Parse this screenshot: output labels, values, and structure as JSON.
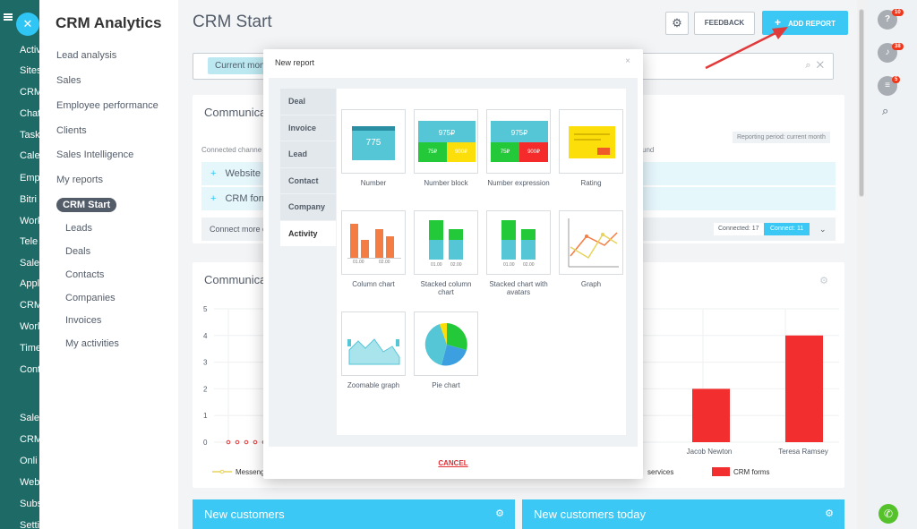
{
  "left_menu": {
    "items": [
      "Activ",
      "Sites",
      "CRM",
      "Chat",
      "Task",
      "Cale",
      "Emp",
      "Bitri",
      "Work",
      "Tele",
      "Sale",
      "Appl",
      "CRM",
      "Worl",
      "Time",
      "Cont",
      "Sales",
      "CRM",
      "Onli",
      "Web",
      "Subs",
      "Setti"
    ]
  },
  "sidebar": {
    "title": "CRM Analytics",
    "items": [
      {
        "label": "Lead analysis"
      },
      {
        "label": "Sales"
      },
      {
        "label": "Employee performance"
      },
      {
        "label": "Clients"
      },
      {
        "label": "Sales Intelligence"
      },
      {
        "label": "My reports"
      },
      {
        "label": "CRM Start"
      },
      {
        "label": "Leads"
      },
      {
        "label": "Deals"
      },
      {
        "label": "Contacts"
      },
      {
        "label": "Companies"
      },
      {
        "label": "Invoices"
      },
      {
        "label": "My activities"
      }
    ]
  },
  "header": {
    "title": "CRM Start",
    "feedback_label": "FEEDBACK",
    "add_report_label": "ADD REPORT",
    "add_report_plus": "+"
  },
  "filter": {
    "chip": "Current mon"
  },
  "communications_card": {
    "title": "Communica",
    "connected_label": "Connected channe",
    "reporting_period": "Reporting period: current month",
    "found_text": "und",
    "channels": [
      "Website",
      "CRM form"
    ],
    "connect_more": "Connect more c",
    "connected_count": "Connected: 17",
    "connect_button": "Connect: 11"
  },
  "chart_card": {
    "title": "Communica",
    "chart_data": {
      "type": "bar",
      "categories": [
        "Jacob Newton",
        "Teresa Ramsey"
      ],
      "series": [
        {
          "name": "CRM forms",
          "values": [
            2,
            4
          ]
        }
      ],
      "y_ticks": [
        "5",
        "4",
        "3",
        "2",
        "1",
        "0"
      ],
      "ylim": [
        0,
        5
      ],
      "legend": [
        "Messeng",
        "services",
        "CRM forms"
      ]
    }
  },
  "bottom_cards": [
    {
      "title": "New customers"
    },
    {
      "title": "New customers today"
    }
  ],
  "right_bar": {
    "badges": [
      "10",
      "38",
      "5"
    ]
  },
  "modal": {
    "title": "New report",
    "close_glyph": "×",
    "tabs": [
      "Deal",
      "Invoice",
      "Lead",
      "Contact",
      "Company",
      "Activity"
    ],
    "active_tab": "Activity",
    "reports": [
      {
        "label": "Number",
        "value": "775"
      },
      {
        "label": "Number block",
        "value": "975₽",
        "sub1": "75₽",
        "sub2": "900₽"
      },
      {
        "label": "Number expression",
        "value": "975₽",
        "sub1": "75₽",
        "sub2": "900₽"
      },
      {
        "label": "Rating"
      },
      {
        "label": "Column chart",
        "ticks": [
          "01.00",
          "02.00"
        ]
      },
      {
        "label": "Stacked column chart",
        "ticks": [
          "01.00",
          "02.00"
        ]
      },
      {
        "label": "Stacked chart with avatars",
        "ticks": [
          "01.00",
          "02.00"
        ]
      },
      {
        "label": "Graph"
      },
      {
        "label": "Zoomable graph"
      },
      {
        "label": "Pie chart"
      }
    ],
    "cancel_label": "CANCEL"
  },
  "colors": {
    "accent": "#3bc8f5",
    "bar_red": "#f22e2e",
    "tile_green": "#24c93a",
    "tile_yellow": "#fbde0a",
    "tile_red": "#f52a2a",
    "tile_teal": "#55c6d6",
    "orange": "#f47d44"
  }
}
